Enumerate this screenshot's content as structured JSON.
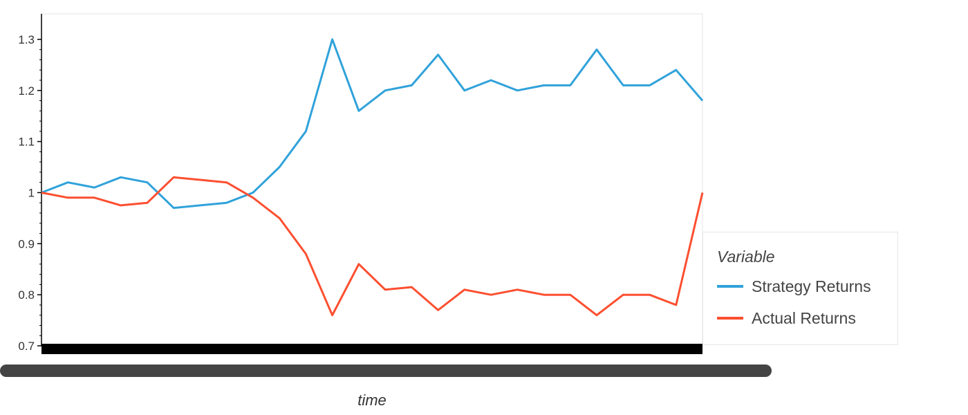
{
  "chart_data": {
    "type": "line",
    "xlabel": "time",
    "ylabel": "",
    "ylim": [
      0.7,
      1.35
    ],
    "yticks": [
      0.7,
      0.8,
      0.9,
      1.0,
      1.1,
      1.2,
      1.3
    ],
    "ytick_labels": [
      "0.7",
      "0.8",
      "0.9",
      "1",
      "1.1",
      "1.2",
      "1.3"
    ],
    "grid": false,
    "legend": {
      "title": "Variable",
      "placement": "right"
    },
    "x": [
      0,
      4,
      8,
      12,
      16,
      20,
      24,
      28,
      32,
      36,
      40,
      44,
      48,
      52,
      56,
      60,
      64,
      68,
      72,
      76,
      80,
      84,
      88,
      92,
      96,
      100
    ],
    "series": [
      {
        "name": "Strategy Returns",
        "color": "#30a2da",
        "values": [
          1.0,
          1.02,
          1.01,
          1.03,
          1.02,
          0.97,
          0.975,
          0.98,
          1.0,
          1.05,
          1.12,
          1.3,
          1.16,
          1.2,
          1.21,
          1.27,
          1.2,
          1.22,
          1.2,
          1.21,
          1.21,
          1.28,
          1.21,
          1.21,
          1.24,
          1.18
        ]
      },
      {
        "name": "Actual Returns",
        "color": "#fc4f30",
        "values": [
          1.0,
          0.99,
          0.99,
          0.975,
          0.98,
          1.03,
          1.025,
          1.02,
          0.99,
          0.95,
          0.88,
          0.76,
          0.86,
          0.81,
          0.815,
          0.77,
          0.81,
          0.8,
          0.81,
          0.8,
          0.8,
          0.76,
          0.8,
          0.8,
          0.78,
          1.0
        ]
      }
    ]
  }
}
